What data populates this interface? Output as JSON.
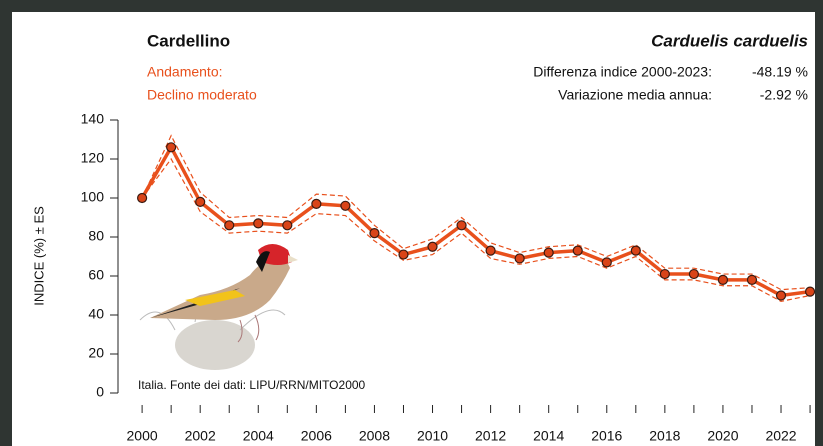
{
  "chart_data": {
    "type": "line",
    "title": "Cardellino",
    "subtitle": "Carduelis carduelis",
    "trend_label": "Andamento:",
    "trend": "Declino moderato",
    "stats": [
      {
        "label": "Differenza indice 2000-2023:",
        "value": "-48.19 %"
      },
      {
        "label": "Variazione media annua:",
        "value": "-2.92 %"
      }
    ],
    "y_label": "INDICE (%) ± ES",
    "note": "Italia. Fonte dei dati: LIPU/RRN/MITO2000",
    "x": [
      2000,
      2001,
      2002,
      2003,
      2004,
      2005,
      2006,
      2007,
      2008,
      2009,
      2010,
      2011,
      2012,
      2013,
      2014,
      2015,
      2016,
      2017,
      2018,
      2019,
      2020,
      2021,
      2022,
      2023
    ],
    "series": [
      {
        "name": "Cardellino",
        "color": "#e8501c",
        "values": [
          100,
          126,
          98,
          86,
          87,
          86,
          97,
          96,
          82,
          71,
          75,
          86,
          73,
          69,
          72,
          73,
          67,
          73,
          61,
          61,
          58,
          58,
          50,
          52
        ],
        "errors": [
          0,
          6,
          5,
          4,
          4,
          4,
          5,
          5,
          4,
          3,
          4,
          4,
          4,
          3,
          3,
          3,
          3,
          3,
          3,
          3,
          3,
          3,
          3,
          2
        ]
      }
    ],
    "xlim": [
      1999.17,
      2023.17
    ],
    "ylim": [
      -5,
      145
    ],
    "yticks": [
      0,
      20,
      40,
      60,
      80,
      100,
      120,
      140
    ],
    "xticks": [
      2000,
      2002,
      2004,
      2006,
      2008,
      2010,
      2012,
      2014,
      2016,
      2018,
      2020,
      2022
    ],
    "xminorticks": [
      2001,
      2003,
      2005,
      2007,
      2009,
      2011,
      2013,
      2015,
      2017,
      2019,
      2021,
      2023
    ],
    "grid": false
  }
}
